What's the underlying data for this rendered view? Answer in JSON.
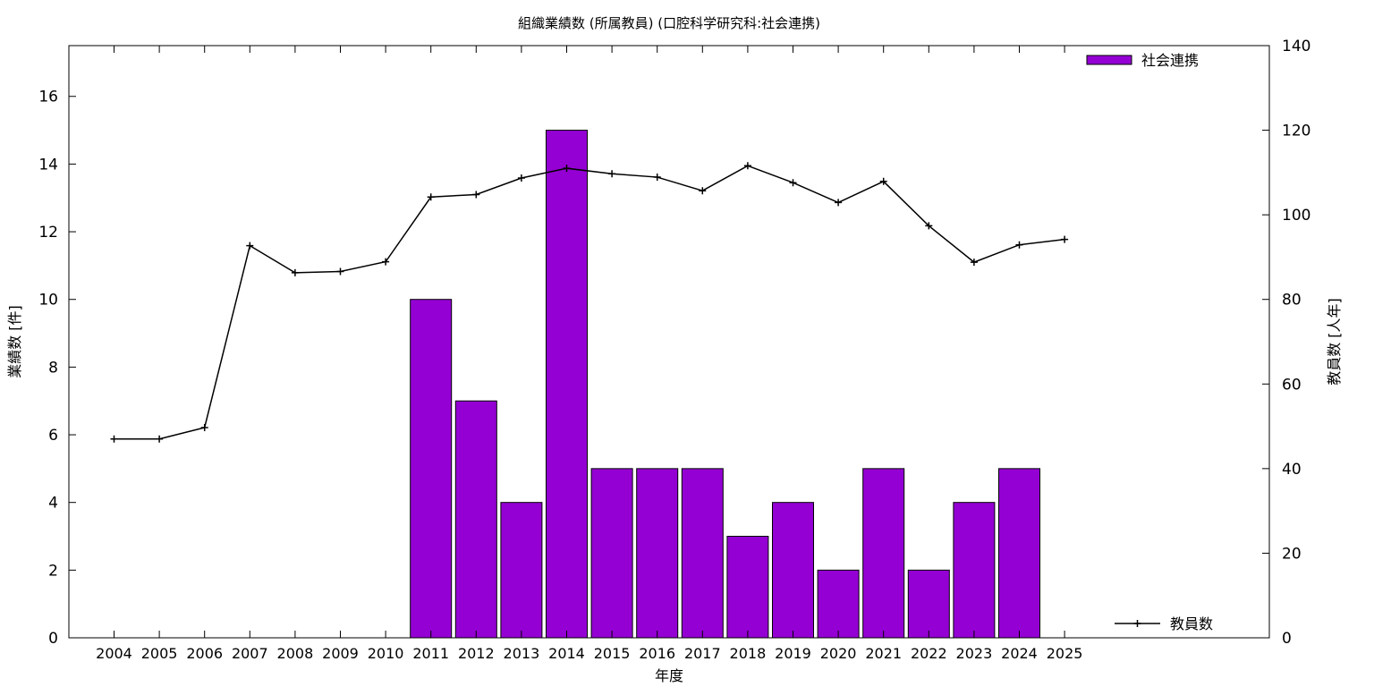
{
  "chart_data": {
    "type": "bar",
    "title": "組織業績数 (所属教員) (口腔科学研究科:社会連携)",
    "xlabel": "年度",
    "ylabel": "業績数 [件]",
    "y2label": "教員数 [人年]",
    "categories": [
      "2004",
      "2005",
      "2006",
      "2007",
      "2008",
      "2009",
      "2010",
      "2011",
      "2012",
      "2013",
      "2014",
      "2015",
      "2016",
      "2017",
      "2018",
      "2019",
      "2020",
      "2021",
      "2022",
      "2023",
      "2024",
      "2025"
    ],
    "ylim": [
      0,
      17.5
    ],
    "y2lim": [
      0,
      140
    ],
    "yticks": [
      0,
      2,
      4,
      6,
      8,
      10,
      12,
      14,
      16
    ],
    "y2ticks": [
      0,
      20,
      40,
      60,
      80,
      100,
      120,
      140
    ],
    "grid": false,
    "series": [
      {
        "name": "社会連携",
        "kind": "bar",
        "axis": "left",
        "color": "#9400d3",
        "legend_position": "top-right",
        "values": [
          0,
          0,
          0,
          0,
          0,
          0,
          0,
          10,
          7,
          4,
          15,
          5,
          5,
          5,
          3,
          4,
          2,
          5,
          2,
          4,
          5,
          0
        ]
      },
      {
        "name": "教員数",
        "kind": "line",
        "axis": "right",
        "color": "#000000",
        "legend_position": "bottom-right",
        "values": [
          47,
          47,
          49.7,
          92.7,
          86.3,
          86.6,
          88.9,
          104.2,
          104.8,
          108.7,
          111,
          109.7,
          108.9,
          105.7,
          111.6,
          107.6,
          102.9,
          107.9,
          97.4,
          88.8,
          92.9,
          94.2
        ]
      }
    ]
  }
}
